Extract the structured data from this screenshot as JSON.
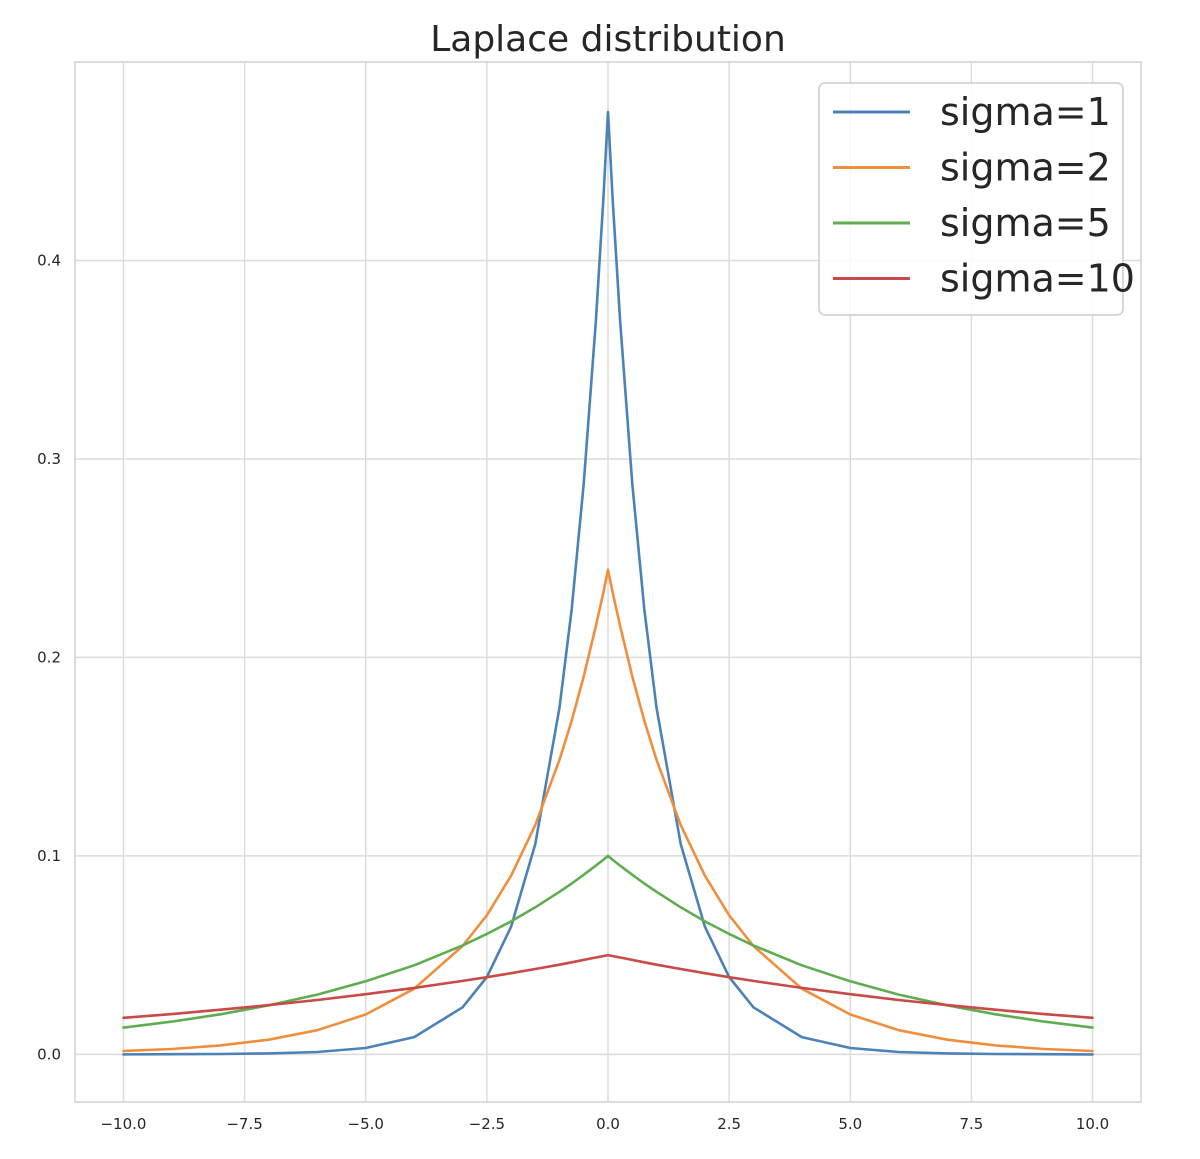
{
  "chart_data": {
    "type": "line",
    "title": "Laplace distribution",
    "xlabel": "",
    "ylabel": "",
    "xlim": [
      -11,
      11
    ],
    "ylim": [
      -0.024,
      0.5
    ],
    "grid": true,
    "legend_placement": "top-right",
    "x_ticks": [
      {
        "value": -10,
        "label": "−10.0"
      },
      {
        "value": -7.5,
        "label": "−7.5"
      },
      {
        "value": -5,
        "label": "−5.0"
      },
      {
        "value": -2.5,
        "label": "−2.5"
      },
      {
        "value": 0,
        "label": "0.0"
      },
      {
        "value": 2.5,
        "label": "2.5"
      },
      {
        "value": 5,
        "label": "5.0"
      },
      {
        "value": 7.5,
        "label": "7.5"
      },
      {
        "value": 10,
        "label": "10.0"
      }
    ],
    "y_ticks": [
      {
        "value": 0,
        "label": "0.0"
      },
      {
        "value": 0.1,
        "label": "0.1"
      },
      {
        "value": 0.2,
        "label": "0.2"
      },
      {
        "value": 0.3,
        "label": "0.3"
      },
      {
        "value": 0.4,
        "label": "0.4"
      }
    ],
    "x": [
      -10,
      -9,
      -8,
      -7,
      -6,
      -5,
      -4,
      -3,
      -2.5,
      -2,
      -1.5,
      -1,
      -0.75,
      -0.5,
      -0.25,
      -0.1,
      0,
      0.1,
      0.25,
      0.5,
      0.75,
      1,
      1.5,
      2,
      2.5,
      3,
      4,
      5,
      6,
      7,
      8,
      9,
      10
    ],
    "series": [
      {
        "name": "sigma=1",
        "color": "#4c82b8",
        "values": [
          0.0,
          0.0001,
          0.0002,
          0.0005,
          0.0012,
          0.0032,
          0.0087,
          0.0237,
          0.039,
          0.0643,
          0.106,
          0.1747,
          0.2243,
          0.288,
          0.3697,
          0.4296,
          0.4748,
          0.4296,
          0.3697,
          0.288,
          0.2243,
          0.1747,
          0.106,
          0.0643,
          0.039,
          0.0237,
          0.0087,
          0.0032,
          0.0012,
          0.0005,
          0.0002,
          0.0001,
          0.0
        ]
      },
      {
        "name": "sigma=2",
        "color": "#ef8f3e",
        "values": [
          0.0017,
          0.0027,
          0.0045,
          0.0074,
          0.0122,
          0.0201,
          0.0331,
          0.0546,
          0.0701,
          0.09,
          0.1156,
          0.1484,
          0.1681,
          0.1906,
          0.2159,
          0.2323,
          0.2442,
          0.2323,
          0.2159,
          0.1906,
          0.1681,
          0.1484,
          0.1156,
          0.09,
          0.0701,
          0.0546,
          0.0331,
          0.0201,
          0.0122,
          0.0074,
          0.0045,
          0.0027,
          0.0017
        ]
      },
      {
        "name": "sigma=5",
        "color": "#60ad4f",
        "values": [
          0.0135,
          0.0165,
          0.0202,
          0.0247,
          0.0301,
          0.0368,
          0.0449,
          0.0549,
          0.0607,
          0.067,
          0.0741,
          0.0819,
          0.0861,
          0.0905,
          0.0951,
          0.098,
          0.1,
          0.098,
          0.0951,
          0.0905,
          0.0861,
          0.0819,
          0.0741,
          0.067,
          0.0607,
          0.0549,
          0.0449,
          0.0368,
          0.0301,
          0.0247,
          0.0202,
          0.0165,
          0.0135
        ]
      },
      {
        "name": "sigma=10",
        "color": "#c94a47",
        "values": [
          0.0184,
          0.0203,
          0.0225,
          0.0248,
          0.0274,
          0.0303,
          0.0335,
          0.037,
          0.0389,
          0.0409,
          0.043,
          0.0452,
          0.0464,
          0.0476,
          0.0488,
          0.0495,
          0.05,
          0.0495,
          0.0488,
          0.0476,
          0.0464,
          0.0452,
          0.043,
          0.0409,
          0.0389,
          0.037,
          0.0335,
          0.0303,
          0.0274,
          0.0248,
          0.0225,
          0.0203,
          0.0184
        ]
      }
    ]
  },
  "colors": {
    "grid": "#dcdcdc",
    "frame": "#d0d0d0",
    "background": "#ffffff",
    "text": "#262626"
  }
}
